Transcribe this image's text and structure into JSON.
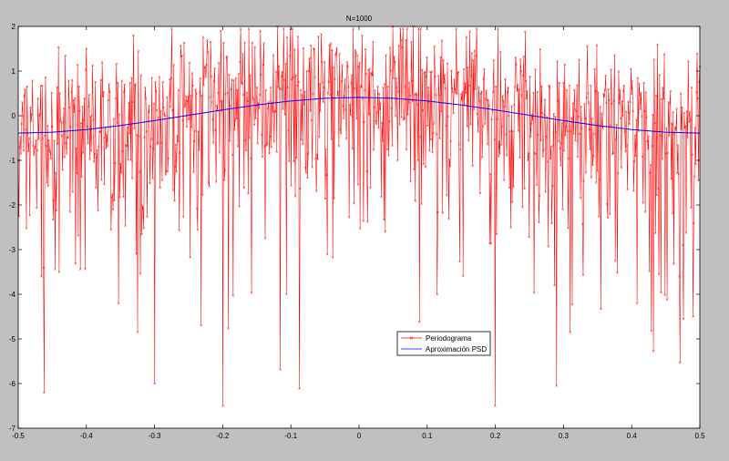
{
  "chart_data": {
    "type": "line",
    "title": "N=1000",
    "xlabel": "",
    "ylabel": "",
    "xlim": [
      -0.5,
      0.5
    ],
    "ylim": [
      -7,
      2
    ],
    "xticks": [
      "-0.5",
      "-0.4",
      "-0.3",
      "-0.2",
      "-0.1",
      "0",
      "0.1",
      "0.2",
      "0.3",
      "0.4",
      "0.5"
    ],
    "yticks": [
      "2",
      "1",
      "0",
      "-1",
      "-2",
      "-3",
      "-4",
      "-5",
      "-6",
      "-7"
    ],
    "grid": false,
    "legend_position": "lower-right-center",
    "series": [
      {
        "name": "Periodograma",
        "color": "#ff0000",
        "marker": "x",
        "n_points": 1000,
        "x_range": [
          -0.5,
          0.5
        ],
        "baseline": "Aproximación PSD curve",
        "typical_spread": [
          -2.4,
          1.4
        ],
        "highlighted_points": [
          {
            "x": -0.5,
            "y": -1.0
          },
          {
            "x": -0.466,
            "y": -3.6
          },
          {
            "x": -0.44,
            "y": -3.5
          },
          {
            "x": -0.4,
            "y": 1.5
          },
          {
            "x": -0.325,
            "y": -4.85
          },
          {
            "x": -0.3,
            "y": -6.0
          },
          {
            "x": -0.2,
            "y": -6.5
          },
          {
            "x": -0.12,
            "y": 2.0
          },
          {
            "x": 0.05,
            "y": 2.0
          },
          {
            "x": 0.08,
            "y": 2.0
          },
          {
            "x": 0.115,
            "y": -4.0
          },
          {
            "x": 0.2,
            "y": -6.5
          },
          {
            "x": 0.29,
            "y": -6.05
          },
          {
            "x": 0.31,
            "y": -4.85
          },
          {
            "x": 0.44,
            "y": -3.55
          },
          {
            "x": 0.47,
            "y": -3.6
          },
          {
            "x": 0.5,
            "y": 1.1
          }
        ]
      },
      {
        "name": "Aproximación PSD",
        "color": "#0000ff",
        "x": [
          -0.5,
          -0.45,
          -0.4,
          -0.35,
          -0.3,
          -0.25,
          -0.2,
          -0.15,
          -0.1,
          -0.05,
          0.0,
          0.05,
          0.1,
          0.15,
          0.2,
          0.25,
          0.3,
          0.35,
          0.4,
          0.45,
          0.5
        ],
        "values": [
          -0.39,
          -0.37,
          -0.31,
          -0.22,
          -0.11,
          0.01,
          0.13,
          0.24,
          0.33,
          0.39,
          0.41,
          0.39,
          0.33,
          0.24,
          0.13,
          0.01,
          -0.11,
          -0.22,
          -0.31,
          -0.37,
          -0.39
        ]
      }
    ]
  }
}
